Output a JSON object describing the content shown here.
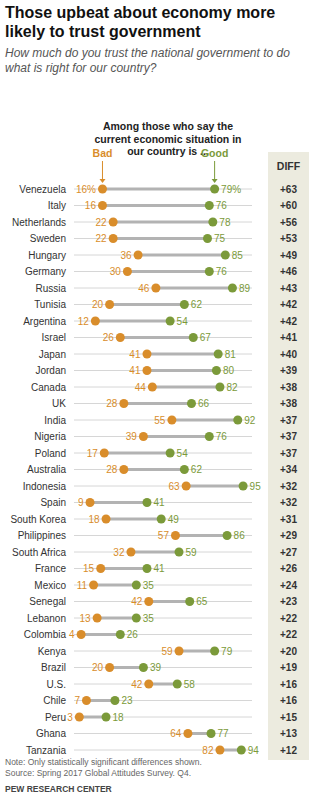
{
  "chart_data": {
    "type": "dumbbell",
    "title": "Those upbeat about economy more likely to trust government",
    "subtitle": "How much do you trust the national government to do what is right for our country?",
    "header": "Among those who say the current economic situation in our country is ...",
    "note": "Note: Only statistically significant differences shown.",
    "source": "Source: Spring 2017 Global Attitudes Survey. Q4.",
    "credit": "PEW RESEARCH CENTER",
    "orientation": "horizontal",
    "data_labels": true,
    "tick_labels": false,
    "grid": false,
    "xlim": [
      0,
      100
    ],
    "categories": [
      "Venezuela",
      "Italy",
      "Netherlands",
      "Sweden",
      "Hungary",
      "Germany",
      "Russia",
      "Tunisia",
      "Argentina",
      "Israel",
      "Japan",
      "Jordan",
      "Canada",
      "UK",
      "India",
      "Nigeria",
      "Poland",
      "Australia",
      "Indonesia",
      "Spain",
      "South Korea",
      "Philippines",
      "South Africa",
      "France",
      "Mexico",
      "Senegal",
      "Lebanon",
      "Colombia",
      "Kenya",
      "Brazil",
      "U.S.",
      "Chile",
      "Peru",
      "Ghana",
      "Tanzania"
    ],
    "series": [
      {
        "name": "Bad",
        "color": "#d98d2b",
        "values": [
          16,
          16,
          22,
          22,
          36,
          30,
          46,
          20,
          12,
          26,
          41,
          41,
          44,
          28,
          55,
          39,
          17,
          28,
          63,
          9,
          18,
          57,
          32,
          15,
          11,
          42,
          13,
          4,
          59,
          20,
          42,
          7,
          3,
          64,
          82
        ],
        "value_labels": [
          "16%",
          "16",
          "22",
          "22",
          "36",
          "30",
          "46",
          "20",
          "12",
          "26",
          "41",
          "41",
          "44",
          "28",
          "55",
          "39",
          "17",
          "28",
          "63",
          "9",
          "18",
          "57",
          "32",
          "15",
          "11",
          "42",
          "13",
          "4",
          "59",
          "20",
          "42",
          "7",
          "3",
          "64",
          "82"
        ]
      },
      {
        "name": "Good",
        "color": "#7b9a3a",
        "values": [
          79,
          76,
          78,
          75,
          85,
          76,
          89,
          62,
          54,
          67,
          81,
          80,
          82,
          66,
          92,
          76,
          54,
          62,
          95,
          41,
          49,
          86,
          59,
          41,
          35,
          65,
          35,
          26,
          79,
          39,
          58,
          23,
          18,
          77,
          94
        ],
        "value_labels": [
          "79%",
          "76",
          "78",
          "75",
          "85",
          "76",
          "89",
          "62",
          "54",
          "67",
          "81",
          "80",
          "82",
          "66",
          "92",
          "76",
          "54",
          "62",
          "95",
          "41",
          "49",
          "86",
          "59",
          "41",
          "35",
          "65",
          "35",
          "26",
          "79",
          "39",
          "58",
          "23",
          "18",
          "77",
          "94"
        ]
      }
    ],
    "diff": {
      "name": "DIFF",
      "values": [
        63,
        60,
        56,
        53,
        49,
        46,
        43,
        42,
        42,
        41,
        40,
        39,
        38,
        38,
        37,
        37,
        37,
        34,
        32,
        32,
        31,
        29,
        27,
        26,
        24,
        23,
        22,
        22,
        20,
        19,
        16,
        16,
        15,
        13,
        12
      ],
      "value_labels": [
        "+63",
        "+60",
        "+56",
        "+53",
        "+49",
        "+46",
        "+43",
        "+42",
        "+42",
        "+41",
        "+40",
        "+39",
        "+38",
        "+38",
        "+37",
        "+37",
        "+37",
        "+34",
        "+32",
        "+32",
        "+31",
        "+29",
        "+27",
        "+26",
        "+24",
        "+23",
        "+22",
        "+22",
        "+20",
        "+19",
        "+16",
        "+16",
        "+15",
        "+13",
        "+12"
      ]
    }
  }
}
